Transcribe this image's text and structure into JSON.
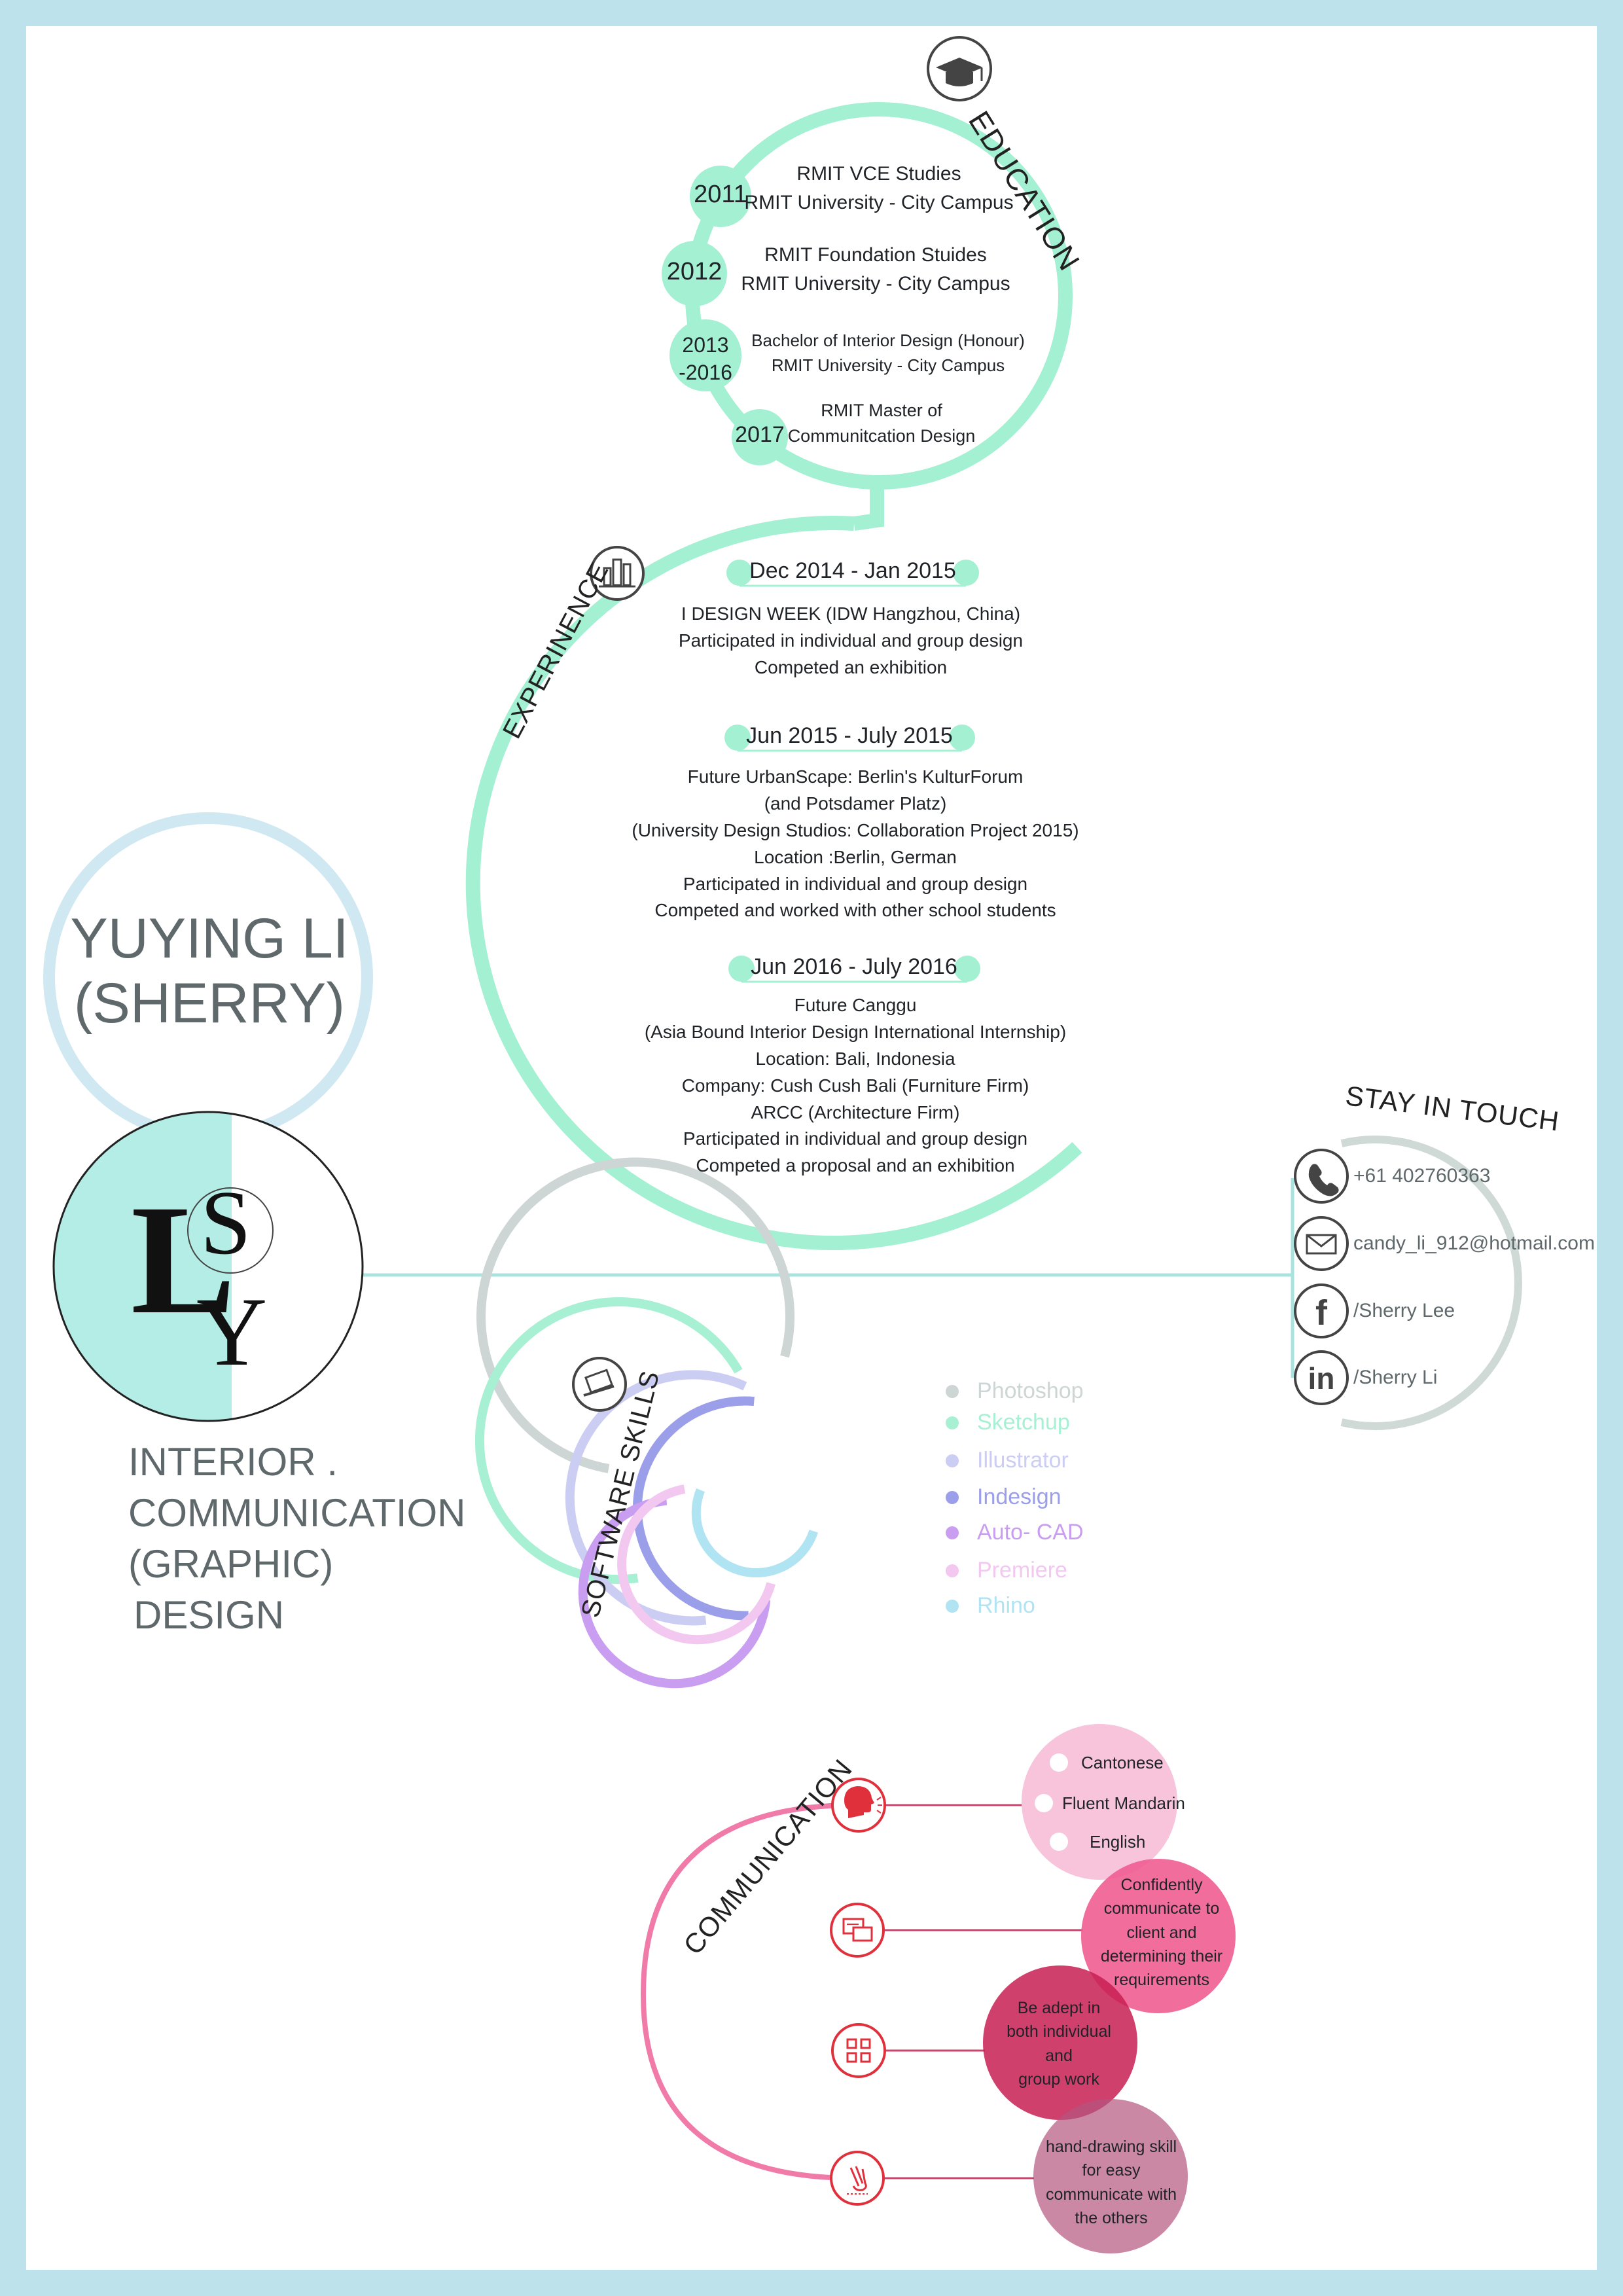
{
  "name": {
    "line1": "YUYING LI",
    "line2": "(SHERRY)"
  },
  "monogram": "LSY",
  "role": [
    "INTERIOR .",
    "COMMUNICATION",
    "(GRAPHIC)",
    "DESIGN"
  ],
  "education": {
    "heading": "EDUCATION",
    "icon": "graduation-cap-icon",
    "items": [
      {
        "year": "2011",
        "line1": "RMIT VCE Studies",
        "line2": "RMIT University - City Campus"
      },
      {
        "year": "2012",
        "line1": "RMIT Foundation Stuides",
        "line2": "RMIT University - City Campus"
      },
      {
        "year": "2013\n-2016",
        "line1": "Bachelor of Interior Design (Honour)",
        "line2": "RMIT University - City Campus"
      },
      {
        "year": "2017",
        "line1": "RMIT Master of",
        "line2": "Communitcation Design"
      }
    ]
  },
  "experience": {
    "heading": "EXPERINENCE",
    "icon": "building-icon",
    "items": [
      {
        "date": "Dec 2014 - Jan 2015",
        "lines": [
          "I  DESIGN WEEK (IDW Hangzhou, China)",
          "Participated in individual and group design",
          "Competed an exhibition"
        ]
      },
      {
        "date": "Jun 2015 - July 2015",
        "lines": [
          "Future UrbanScape:  Berlin's KulturForum",
          "(and Potsdamer Platz)",
          "(University Design Studios: Collaboration Project 2015)",
          "Location :Berlin, German",
          "Participated in individual and group design",
          "Competed and worked with other school students"
        ]
      },
      {
        "date": "Jun 2016 - July 2016",
        "lines": [
          "Future Canggu",
          "(Asia Bound Interior Design International Internship)",
          "Location: Bali, Indonesia",
          "Company: Cush Cush Bali (Furniture Firm)",
          "ARCC (Architecture Firm)",
          "Participated in individual and group design",
          "Competed a proposal and an exhibition"
        ]
      }
    ]
  },
  "contact": {
    "heading": "STAY IN TOUCH",
    "items": [
      {
        "icon": "phone-icon",
        "text": "+61 402760363"
      },
      {
        "icon": "mail-icon",
        "text": "candy_li_912@hotmail.com"
      },
      {
        "icon": "facebook-icon",
        "text": "/Sherry Lee"
      },
      {
        "icon": "linkedin-icon",
        "text": "/Sherry Li"
      }
    ]
  },
  "software": {
    "heading": "SOFTWARE SKILLS",
    "icon": "laptop-icon",
    "items": [
      {
        "name": "Photoshop",
        "color": "#cdd6d4"
      },
      {
        "name": "Sketchup",
        "color": "#a8f0d4"
      },
      {
        "name": "Illustrator",
        "color": "#cccdf3"
      },
      {
        "name": "Indesign",
        "color": "#9b9ee9"
      },
      {
        "name": "Auto- CAD",
        "color": "#c99df0"
      },
      {
        "name": "Premiere",
        "color": "#f2c8f0"
      },
      {
        "name": "Rhino",
        "color": "#b0e4f3"
      }
    ]
  },
  "communication": {
    "heading": "COMMUNICATION",
    "icons": [
      "speaking-head-icon",
      "chat-icon",
      "grid-icon",
      "hand-drawing-icon"
    ],
    "languages": [
      "Cantonese",
      "Fluent Mandarin",
      "English"
    ],
    "bubbles": [
      {
        "lines": [
          "Confidently",
          "communicate to",
          "client and",
          "determining their",
          "requirements"
        ]
      },
      {
        "lines": [
          "Be adept in",
          "both individual",
          "and",
          "group work"
        ]
      },
      {
        "lines": [
          "hand-drawing skill",
          "for easy",
          "communicate with",
          "the others"
        ]
      }
    ]
  },
  "colors": {
    "mint": "#a3f0d2",
    "frame": "#bde2ec",
    "grey": "#cfd9d6",
    "pink": "#f07aa8",
    "red": "#e0303c",
    "teal_line": "#a9e3e0"
  }
}
